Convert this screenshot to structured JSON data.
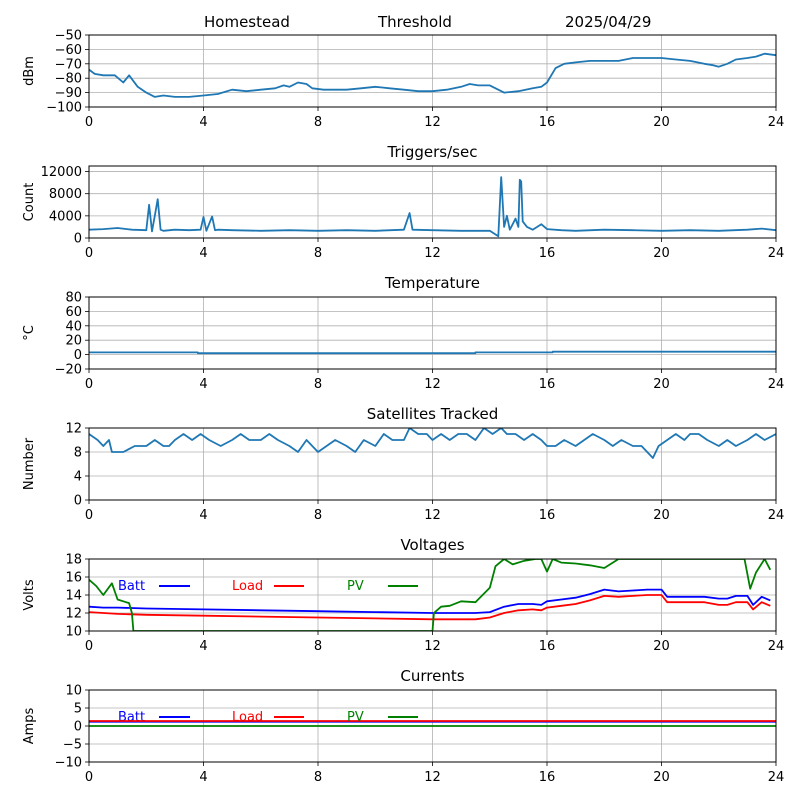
{
  "header": {
    "station": "Homestead",
    "mode": "Threshold",
    "date": "2025/04/29"
  },
  "colors": {
    "series": "#1f77b4",
    "batt": "#0000ff",
    "load": "#ff0000",
    "pv": "#008000",
    "grid": "#b0b0b0"
  },
  "chart_data": [
    {
      "id": "signal",
      "type": "line",
      "title": "",
      "xlabel": "",
      "ylabel": "dBm",
      "xlim": [
        0,
        24
      ],
      "ylim": [
        -100,
        -50
      ],
      "xticks": [
        "0",
        "4",
        "8",
        "12",
        "16",
        "20",
        "24"
      ],
      "yticks": [
        "−50",
        "−60",
        "−70",
        "−80",
        "−90",
        "−100"
      ],
      "grid": true,
      "series": [
        {
          "x": [
            0,
            0.2,
            0.5,
            0.9,
            1.2,
            1.4,
            1.7,
            2.0,
            2.3,
            2.6,
            3.0,
            3.5,
            4.0,
            4.5,
            5.0,
            5.5,
            6.0,
            6.5,
            6.8,
            7.0,
            7.3,
            7.6,
            7.8,
            8.2,
            8.5,
            9.0,
            9.5,
            10.0,
            10.5,
            11.0,
            11.5,
            12.0,
            12.5,
            13.0,
            13.3,
            13.6,
            14.0,
            14.5,
            15.0,
            15.5,
            15.8,
            16.0,
            16.3,
            16.6,
            17.0,
            17.5,
            18.0,
            18.5,
            19.0,
            19.5,
            20.0,
            20.5,
            21.0,
            21.5,
            21.8,
            22.0,
            22.3,
            22.6,
            23.0,
            23.3,
            23.6,
            24
          ],
          "values": [
            -74,
            -77,
            -78,
            -78,
            -83,
            -78,
            -86,
            -90,
            -93,
            -92,
            -93,
            -93,
            -92,
            -91,
            -88,
            -89,
            -88,
            -87,
            -85,
            -86,
            -83,
            -84,
            -87,
            -88,
            -88,
            -88,
            -87,
            -86,
            -87,
            -88,
            -89,
            -89,
            -88,
            -86,
            -84,
            -85,
            -85,
            -90,
            -89,
            -87,
            -86,
            -83,
            -73,
            -70,
            -69,
            -68,
            -68,
            -68,
            -66,
            -66,
            -66,
            -67,
            -68,
            -70,
            -71,
            -72,
            -70,
            -67,
            -66,
            -65,
            -63,
            -64
          ]
        }
      ]
    },
    {
      "id": "triggers",
      "type": "line",
      "title": "Triggers/sec",
      "xlabel": "",
      "ylabel": "Count",
      "xlim": [
        0,
        24
      ],
      "ylim": [
        0,
        13000
      ],
      "xticks": [
        "0",
        "4",
        "8",
        "12",
        "16",
        "20",
        "24"
      ],
      "yticks": [
        "0",
        "4000",
        "8000",
        "12000"
      ],
      "ytickvals": [
        0,
        4000,
        8000,
        12000
      ],
      "grid": true,
      "series": [
        {
          "x": [
            0,
            0.5,
            1.0,
            1.5,
            2.0,
            2.1,
            2.2,
            2.3,
            2.4,
            2.5,
            2.6,
            3.0,
            3.5,
            3.9,
            4.0,
            4.1,
            4.3,
            4.4,
            4.5,
            5.0,
            6.0,
            7.0,
            8.0,
            9.0,
            10.0,
            11.0,
            11.2,
            11.3,
            12.0,
            13.0,
            14.0,
            14.3,
            14.4,
            14.5,
            14.6,
            14.7,
            14.8,
            14.9,
            15.0,
            15.05,
            15.1,
            15.15,
            15.3,
            15.5,
            15.8,
            16.0,
            16.5,
            17.0,
            18.0,
            19.0,
            20.0,
            21.0,
            22.0,
            23.0,
            23.5,
            24
          ],
          "values": [
            1500,
            1600,
            1800,
            1500,
            1400,
            6000,
            1200,
            4000,
            7000,
            1500,
            1300,
            1500,
            1400,
            1500,
            3800,
            1300,
            3900,
            1400,
            1500,
            1400,
            1300,
            1400,
            1300,
            1400,
            1300,
            1500,
            4500,
            1500,
            1400,
            1300,
            1300,
            300,
            11000,
            2000,
            4000,
            1500,
            2500,
            3500,
            2000,
            10500,
            10200,
            3000,
            2000,
            1500,
            2500,
            1600,
            1400,
            1300,
            1500,
            1400,
            1300,
            1400,
            1300,
            1500,
            1700,
            1400
          ]
        }
      ]
    },
    {
      "id": "temperature",
      "type": "line",
      "title": "Temperature",
      "xlabel": "",
      "ylabel": "°C",
      "xlim": [
        0,
        24
      ],
      "ylim": [
        -20,
        80
      ],
      "xticks": [
        "0",
        "4",
        "8",
        "12",
        "16",
        "20",
        "24"
      ],
      "yticks": [
        "80",
        "60",
        "40",
        "20",
        "0",
        "−20"
      ],
      "grid": true,
      "series": [
        {
          "x": [
            0,
            3.8,
            3.8,
            13.5,
            13.5,
            16.2,
            16.2,
            24
          ],
          "values": [
            3,
            3,
            2,
            2,
            3,
            3,
            4,
            4
          ]
        }
      ]
    },
    {
      "id": "satellites",
      "type": "line",
      "title": "Satellites Tracked",
      "xlabel": "",
      "ylabel": "Number",
      "xlim": [
        0,
        24
      ],
      "ylim": [
        0,
        12
      ],
      "xticks": [
        "0",
        "4",
        "8",
        "12",
        "16",
        "20",
        "24"
      ],
      "yticks": [
        "12",
        "8",
        "4",
        "0"
      ],
      "grid": true,
      "series": [
        {
          "x": [
            0,
            0.3,
            0.5,
            0.7,
            0.8,
            1.2,
            1.6,
            2.0,
            2.3,
            2.6,
            2.8,
            3.0,
            3.3,
            3.6,
            3.9,
            4.2,
            4.6,
            5.0,
            5.3,
            5.6,
            6.0,
            6.3,
            6.6,
            7.0,
            7.3,
            7.6,
            8.0,
            8.3,
            8.6,
            9.0,
            9.3,
            9.6,
            10.0,
            10.3,
            10.6,
            11.0,
            11.2,
            11.5,
            11.8,
            12.0,
            12.3,
            12.6,
            12.9,
            13.2,
            13.5,
            13.8,
            14.1,
            14.4,
            14.6,
            14.9,
            15.2,
            15.5,
            15.8,
            16.0,
            16.3,
            16.6,
            17.0,
            17.3,
            17.6,
            18.0,
            18.3,
            18.6,
            19.0,
            19.3,
            19.5,
            19.7,
            19.9,
            20.2,
            20.5,
            20.8,
            21.0,
            21.3,
            21.6,
            22.0,
            22.3,
            22.6,
            23.0,
            23.3,
            23.6,
            24
          ],
          "values": [
            11,
            10,
            9,
            10,
            8,
            8,
            9,
            9,
            10,
            9,
            9,
            10,
            11,
            10,
            11,
            10,
            9,
            10,
            11,
            10,
            10,
            11,
            10,
            9,
            8,
            10,
            8,
            9,
            10,
            9,
            8,
            10,
            9,
            11,
            10,
            10,
            12,
            11,
            11,
            10,
            11,
            10,
            11,
            11,
            10,
            12,
            11,
            12,
            11,
            11,
            10,
            11,
            10,
            9,
            9,
            10,
            9,
            10,
            11,
            10,
            9,
            10,
            9,
            9,
            8,
            7,
            9,
            10,
            11,
            10,
            11,
            11,
            10,
            9,
            10,
            9,
            10,
            11,
            10,
            11
          ]
        }
      ]
    },
    {
      "id": "voltages",
      "type": "line",
      "title": "Voltages",
      "xlabel": "",
      "ylabel": "Volts",
      "xlim": [
        0,
        24
      ],
      "ylim": [
        10,
        18
      ],
      "xticks": [
        "0",
        "4",
        "8",
        "12",
        "16",
        "20",
        "24"
      ],
      "yticks": [
        "18",
        "16",
        "14",
        "12",
        "10"
      ],
      "grid": true,
      "legend": "top-left",
      "series": [
        {
          "name": "Batt",
          "color": "batt",
          "x": [
            0,
            0.5,
            1,
            2,
            4,
            6,
            8,
            10,
            12,
            13,
            13.5,
            14,
            14.5,
            15,
            15.5,
            15.8,
            16,
            16.5,
            17,
            17.5,
            18,
            18.5,
            19,
            19.5,
            20,
            20.2,
            21,
            21.5,
            22,
            22.3,
            22.6,
            23,
            23.2,
            23.5,
            23.8
          ],
          "values": [
            12.7,
            12.6,
            12.6,
            12.5,
            12.4,
            12.3,
            12.2,
            12.1,
            12.0,
            12.0,
            12.0,
            12.1,
            12.7,
            13.0,
            13.0,
            12.9,
            13.3,
            13.5,
            13.7,
            14.1,
            14.6,
            14.4,
            14.5,
            14.6,
            14.6,
            13.8,
            13.8,
            13.8,
            13.6,
            13.6,
            13.9,
            13.9,
            12.9,
            13.8,
            13.4
          ]
        },
        {
          "name": "Load",
          "color": "load",
          "x": [
            0,
            0.5,
            1,
            2,
            4,
            6,
            8,
            10,
            12,
            13,
            13.5,
            14,
            14.5,
            15,
            15.5,
            15.8,
            16,
            16.5,
            17,
            17.5,
            18,
            18.5,
            19,
            19.5,
            20,
            20.2,
            21,
            21.5,
            22,
            22.3,
            22.6,
            23,
            23.2,
            23.5,
            23.8
          ],
          "values": [
            12.1,
            12.0,
            11.9,
            11.8,
            11.7,
            11.6,
            11.5,
            11.4,
            11.3,
            11.3,
            11.3,
            11.5,
            12.0,
            12.3,
            12.4,
            12.3,
            12.6,
            12.8,
            13.0,
            13.4,
            13.9,
            13.8,
            13.9,
            14.0,
            14.0,
            13.2,
            13.2,
            13.2,
            12.9,
            12.9,
            13.2,
            13.2,
            12.4,
            13.2,
            12.8
          ]
        },
        {
          "name": "PV",
          "color": "pv",
          "x": [
            0,
            0.25,
            0.5,
            0.8,
            1.0,
            1.2,
            1.4,
            1.5,
            1.55,
            12.0,
            12.05,
            12.3,
            12.6,
            13.0,
            13.5,
            14.0,
            14.2,
            14.5,
            14.8,
            15.2,
            15.6,
            15.8,
            16.0,
            16.2,
            16.5,
            17.0,
            17.5,
            18.0,
            18.5,
            19.0,
            19.5,
            20.0,
            20.5,
            21,
            21.5,
            22,
            22.5,
            22.9,
            23.1,
            23.3,
            23.6,
            23.8
          ],
          "values": [
            15.7,
            15.0,
            14.0,
            15.3,
            13.5,
            13.3,
            13.1,
            12.0,
            10.0,
            10.0,
            12.0,
            12.7,
            12.8,
            13.3,
            13.2,
            14.8,
            17.2,
            18.0,
            17.4,
            17.8,
            18.0,
            18.0,
            16.6,
            18.0,
            17.6,
            17.5,
            17.3,
            17.0,
            18.0,
            18.0,
            18.0,
            18.0,
            18.0,
            18.0,
            18.0,
            18.0,
            18.0,
            18.0,
            14.7,
            16.5,
            18.0,
            16.8
          ]
        }
      ]
    },
    {
      "id": "currents",
      "type": "line",
      "title": "Currents",
      "xlabel": "",
      "ylabel": "Amps",
      "xlim": [
        0,
        24
      ],
      "ylim": [
        -10,
        10
      ],
      "xticks": [
        "0",
        "4",
        "8",
        "12",
        "16",
        "20",
        "24"
      ],
      "yticks": [
        "10",
        "5",
        "0",
        "−5",
        "−10"
      ],
      "grid": true,
      "legend": "top-left",
      "series": [
        {
          "name": "Batt",
          "color": "batt",
          "x": [
            0,
            24
          ],
          "values": [
            1.2,
            1.2
          ]
        },
        {
          "name": "Load",
          "color": "load",
          "x": [
            0,
            24
          ],
          "values": [
            1.4,
            1.4
          ]
        },
        {
          "name": "PV",
          "color": "pv",
          "x": [
            0,
            24
          ],
          "values": [
            0.0,
            0.0
          ]
        }
      ]
    }
  ]
}
